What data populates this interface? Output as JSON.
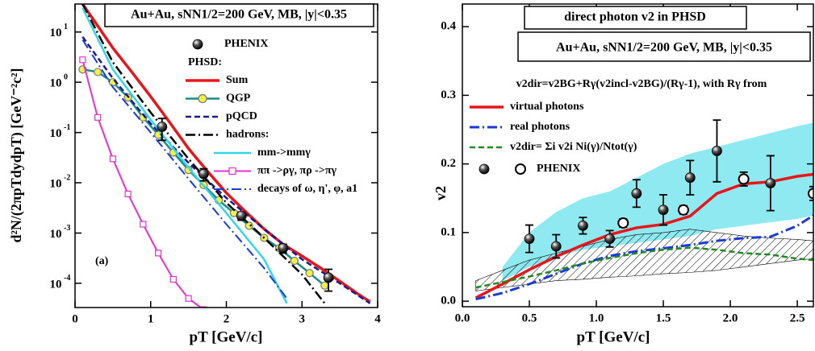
{
  "chart_data": [
    {
      "type": "line",
      "ylog": true,
      "title": "Au+Au, sNN1/2=200 GeV, MB, |y|<0.35",
      "annotation": "(a)",
      "x_label": "pT [GeV/c]",
      "y_label": "d²N/(2πpTdydpT)  [GeV⁻²c²]",
      "legend_title": "PHSD:",
      "xlim": [
        0,
        4
      ],
      "ylim": [
        3.3e-05,
        36
      ],
      "xticks": [
        0,
        1,
        2,
        3,
        4
      ],
      "yticks": [
        {
          "value": 0.0001,
          "label": "10",
          "exponent": "-4"
        },
        {
          "value": 0.001,
          "label": "10",
          "exponent": "-3"
        },
        {
          "value": 0.01,
          "label": "10",
          "exponent": "-2"
        },
        {
          "value": 0.1,
          "label": "10",
          "exponent": "-1"
        },
        {
          "value": 1,
          "label": "10",
          "exponent": "0"
        },
        {
          "value": 10,
          "label": "10",
          "exponent": "1"
        }
      ],
      "series": [
        {
          "name": "Sum",
          "color": "#e8161b",
          "style": "solid",
          "width": 3.5,
          "x": [
            0.1,
            0.25,
            0.5,
            0.75,
            1,
            1.25,
            1.5,
            1.75,
            2,
            2.25,
            2.5,
            2.75,
            3,
            3.25,
            3.5,
            3.75,
            3.9
          ],
          "values": [
            36,
            17,
            4.8,
            1.6,
            0.52,
            0.16,
            0.048,
            0.017,
            0.0063,
            0.0027,
            0.0012,
            0.0006,
            0.00035,
            0.0002,
            0.00011,
            6e-05,
            4.3e-05
          ]
        },
        {
          "name": "QGP",
          "color": "#1f8a8a",
          "style": "solid",
          "width": 2.5,
          "marker": "circle",
          "marker_color": "#f2f04a",
          "x": [
            0.1,
            0.3,
            0.5,
            0.7,
            0.9,
            1.1,
            1.3,
            1.5,
            1.7,
            1.9,
            2.1,
            2.3,
            2.5,
            2.7,
            2.9,
            3.1,
            3.3
          ],
          "values": [
            1.8,
            1.6,
            1.0,
            0.5,
            0.2,
            0.09,
            0.04,
            0.018,
            0.009,
            0.0045,
            0.0025,
            0.0014,
            0.0008,
            0.0005,
            0.00028,
            0.00016,
            9e-05
          ]
        },
        {
          "name": "pQCD",
          "color": "#1a1a8c",
          "style": "dash",
          "width": 2.5,
          "x": [
            0.1,
            0.5,
            1,
            1.5,
            2,
            2.5,
            3,
            3.5,
            3.9
          ],
          "values": [
            8,
            1.2,
            0.15,
            0.025,
            0.005,
            0.0012,
            0.0003,
            0.0001,
            4e-05
          ]
        },
        {
          "name": "hadrons:",
          "color": "#000000",
          "style": "dashdot",
          "width": 2.5,
          "x": [
            0.1,
            0.5,
            1,
            1.5,
            2,
            2.5,
            3,
            3.3
          ],
          "values": [
            36,
            2.5,
            0.25,
            0.03,
            0.004,
            0.0008,
            0.00015,
            4e-05
          ]
        },
        {
          "name": "mm->mmγ",
          "color": "#33d6e8",
          "style": "solid",
          "width": 2.5,
          "x": [
            0.1,
            0.5,
            1,
            1.5,
            2,
            2.5,
            2.8
          ],
          "values": [
            30,
            1.8,
            0.18,
            0.02,
            0.0025,
            0.0003,
            4e-05
          ]
        },
        {
          "name": "ππ ->ργ, πρ ->πγ",
          "color": "#e830d0",
          "style": "solid",
          "width": 2,
          "marker": "square",
          "marker_color": "#ffffff",
          "x": [
            0.1,
            0.3,
            0.5,
            0.7,
            0.9,
            1.1,
            1.3,
            1.5,
            1.7
          ],
          "values": [
            2.8,
            0.2,
            0.03,
            0.006,
            0.0015,
            0.0004,
            0.00012,
            5e-05,
            3e-05
          ]
        },
        {
          "name": "decays of ω, η', φ, a1",
          "color": "#1a3ad8",
          "style": "dashdot",
          "width": 2,
          "x": [
            0.1,
            0.5,
            1,
            1.5,
            2,
            2.5,
            2.8
          ],
          "values": [
            7,
            0.8,
            0.1,
            0.012,
            0.0015,
            0.0002,
            5e-05
          ]
        }
      ],
      "points": [
        {
          "name": "PHENIX",
          "marker": "filled",
          "x": [
            1.15,
            1.7,
            2.2,
            2.75,
            3.35
          ],
          "values": [
            0.13,
            0.015,
            0.0022,
            0.0005,
            0.00013
          ],
          "errors": [
            0.06,
            0.004,
            0.0004,
            0.0001,
            6e-05
          ]
        }
      ]
    },
    {
      "type": "line",
      "ylog": false,
      "title": "direct photon v2 in PHSD",
      "subtitle": "Au+Au, sNN1/2=200 GeV, MB, |y|<0.35",
      "annotation": "v2dir=v2BG+Rγ(v2incl-v2BG)/(Rγ-1), with Rγ from",
      "x_label": "pT [GeV/c]",
      "y_label": "v2",
      "xlim": [
        0,
        2.62
      ],
      "ylim": [
        -0.008,
        0.433
      ],
      "xticks": [
        {
          "value": 0,
          "label": "0.0"
        },
        0.5,
        {
          "value": 1,
          "label": "1.0"
        },
        1.5,
        {
          "value": 2,
          "label": "2.0"
        },
        2.5
      ],
      "yticks": [
        {
          "value": 0,
          "label": "0.0"
        },
        0.1,
        0.2,
        0.3,
        0.4
      ],
      "bands": [
        {
          "color": "#5fe0ea",
          "fill": "solid",
          "x": [
            0.3,
            0.5,
            0.7,
            0.9,
            1.1,
            1.3,
            1.5,
            1.7,
            1.9,
            2.1,
            2.3,
            2.5,
            2.62
          ],
          "lower": [
            0.03,
            0.05,
            0.065,
            0.075,
            0.08,
            0.085,
            0.09,
            0.095,
            0.105,
            0.11,
            0.115,
            0.12,
            0.125
          ],
          "upper": [
            0.05,
            0.1,
            0.13,
            0.15,
            0.16,
            0.18,
            0.2,
            0.215,
            0.225,
            0.235,
            0.245,
            0.255,
            0.26
          ]
        },
        {
          "color": "#000000",
          "fill": "hatch",
          "x": [
            0.1,
            0.3,
            0.5,
            0.7,
            0.9,
            1.1,
            1.3,
            1.5,
            1.7,
            1.9,
            2.1,
            2.3,
            2.5,
            2.62
          ],
          "lower": [
            0.015,
            0.02,
            0.025,
            0.03,
            0.032,
            0.035,
            0.037,
            0.04,
            0.042,
            0.045,
            0.05,
            0.055,
            0.06,
            0.062
          ],
          "upper": [
            0.03,
            0.045,
            0.06,
            0.07,
            0.08,
            0.09,
            0.097,
            0.1,
            0.105,
            0.1,
            0.095,
            0.092,
            0.09,
            0.088
          ]
        }
      ],
      "series": [
        {
          "name": "virtual photons",
          "color": "#e8161b",
          "style": "solid",
          "width": 3.5,
          "x": [
            0.1,
            0.3,
            0.5,
            0.7,
            0.9,
            1.1,
            1.3,
            1.5,
            1.7,
            1.9,
            2.1,
            2.3,
            2.5,
            2.62
          ],
          "values": [
            0.005,
            0.025,
            0.046,
            0.065,
            0.082,
            0.097,
            0.107,
            0.112,
            0.124,
            0.157,
            0.171,
            0.174,
            0.182,
            0.185
          ]
        },
        {
          "name": "real photons",
          "color": "#1a3ad8",
          "style": "dashdot",
          "width": 3,
          "x": [
            0.1,
            0.3,
            0.5,
            0.7,
            0.9,
            1.1,
            1.3,
            1.5,
            1.7,
            1.9,
            2.1,
            2.3,
            2.5,
            2.62
          ],
          "values": [
            0.003,
            0.012,
            0.025,
            0.04,
            0.055,
            0.066,
            0.073,
            0.077,
            0.082,
            0.088,
            0.092,
            0.094,
            0.11,
            0.125
          ]
        },
        {
          "name": "v2dir= Σi v2i Ni(γ)/Ntot(γ)",
          "color": "#1f8a1f",
          "style": "dash",
          "width": 2.5,
          "x": [
            0.1,
            0.3,
            0.5,
            0.7,
            0.9,
            1.1,
            1.3,
            1.5,
            1.7,
            1.9,
            2.1,
            2.3,
            2.5,
            2.62
          ],
          "values": [
            0.02,
            0.028,
            0.036,
            0.045,
            0.055,
            0.063,
            0.07,
            0.075,
            0.078,
            0.075,
            0.07,
            0.068,
            0.062,
            0.06
          ]
        }
      ],
      "points": [
        {
          "name": "PHENIX",
          "marker": "filled",
          "x": [
            0.5,
            0.7,
            0.9,
            1.1,
            1.3,
            1.5,
            1.7,
            1.9,
            2.3
          ],
          "values": [
            0.091,
            0.08,
            0.11,
            0.091,
            0.157,
            0.133,
            0.18,
            0.219,
            0.172
          ],
          "errors": [
            0.02,
            0.017,
            0.012,
            0.012,
            0.02,
            0.022,
            0.025,
            0.045,
            0.04
          ]
        },
        {
          "marker": "open",
          "x": [
            1.2,
            1.65,
            2.1,
            2.62
          ],
          "values": [
            0.114,
            0.133,
            0.178,
            0.157
          ],
          "errors": [
            0.006,
            0.006,
            0.01,
            0.01
          ]
        }
      ]
    }
  ]
}
